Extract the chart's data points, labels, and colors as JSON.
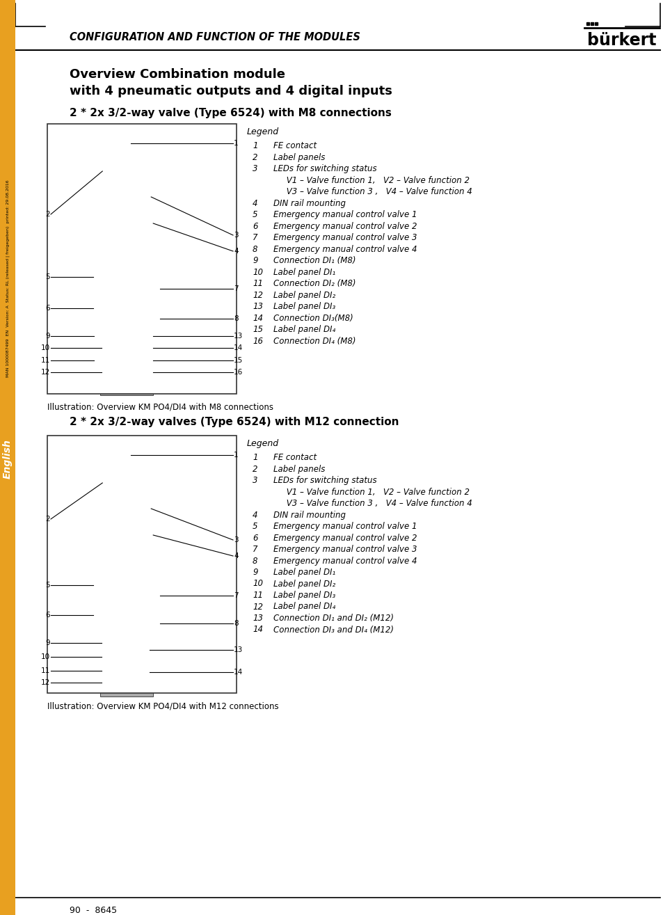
{
  "page_title": "CONFIGURATION AND FUNCTION OF THE MODULES",
  "brand": "bürkert",
  "section_title_line1": "Overview Combination module",
  "section_title_line2": "with 4 pneumatic outputs and 4 digital inputs",
  "subsection1_title": "2 * 2x 3/2-way valve (Type 6524) with M8 connections",
  "subsection2_title": "2 * 2x 3/2-way valves (Type 6524) with M12 connection",
  "legend_title": "Legend",
  "legend1": [
    [
      "1",
      "FE contact"
    ],
    [
      "2",
      "Label panels"
    ],
    [
      "3",
      "LEDs for switching status"
    ],
    [
      "",
      "     V1 – Valve function 1,   V2 – Valve function 2"
    ],
    [
      "",
      "     V3 – Valve function 3 ,   V4 – Valve function 4"
    ],
    [
      "4",
      "DIN rail mounting"
    ],
    [
      "5",
      "Emergency manual control valve 1"
    ],
    [
      "6",
      "Emergency manual control valve 2"
    ],
    [
      "7",
      "Emergency manual control valve 3"
    ],
    [
      "8",
      "Emergency manual control valve 4"
    ],
    [
      "9",
      "Connection DI₁ (M8)"
    ],
    [
      "10",
      "Label panel DI₁"
    ],
    [
      "11",
      "Connection DI₂ (M8)"
    ],
    [
      "12",
      "Label panel DI₂"
    ],
    [
      "13",
      "Label panel DI₃"
    ],
    [
      "14",
      "Connection DI₃(M8)"
    ],
    [
      "15",
      "Label panel DI₄"
    ],
    [
      "16",
      "Connection DI₄ (M8)"
    ]
  ],
  "legend2": [
    [
      "1",
      "FE contact"
    ],
    [
      "2",
      "Label panels"
    ],
    [
      "3",
      "LEDs for switching status"
    ],
    [
      "",
      "     V1 – Valve function 1,   V2 – Valve function 2"
    ],
    [
      "",
      "     V3 – Valve function 3 ,   V4 – Valve function 4"
    ],
    [
      "4",
      "DIN rail mounting"
    ],
    [
      "5",
      "Emergency manual control valve 1"
    ],
    [
      "6",
      "Emergency manual control valve 2"
    ],
    [
      "7",
      "Emergency manual control valve 3"
    ],
    [
      "8",
      "Emergency manual control valve 4"
    ],
    [
      "9",
      "Label panel DI₁"
    ],
    [
      "10",
      "Label panel DI₂"
    ],
    [
      "11",
      "Label panel DI₃"
    ],
    [
      "12",
      "Label panel DI₄"
    ],
    [
      "13",
      "Connection DI₁ and DI₂ (M12)"
    ],
    [
      "14",
      "Connection DI₃ and DI₄ (M12)"
    ]
  ],
  "caption1": "Illustration: Overview KM PO4/DI4 with M8 connections",
  "caption2": "Illustration: Overview KM PO4/DI4 with M12 connections",
  "footer": "90  -  8645",
  "bg_color": "#ffffff",
  "sidebar_color": "#e8a020",
  "sidebar_text": "MAN 1000087499  EN  Version: A  Status: RL (released | freigegeben)  printed: 29.08.2016"
}
